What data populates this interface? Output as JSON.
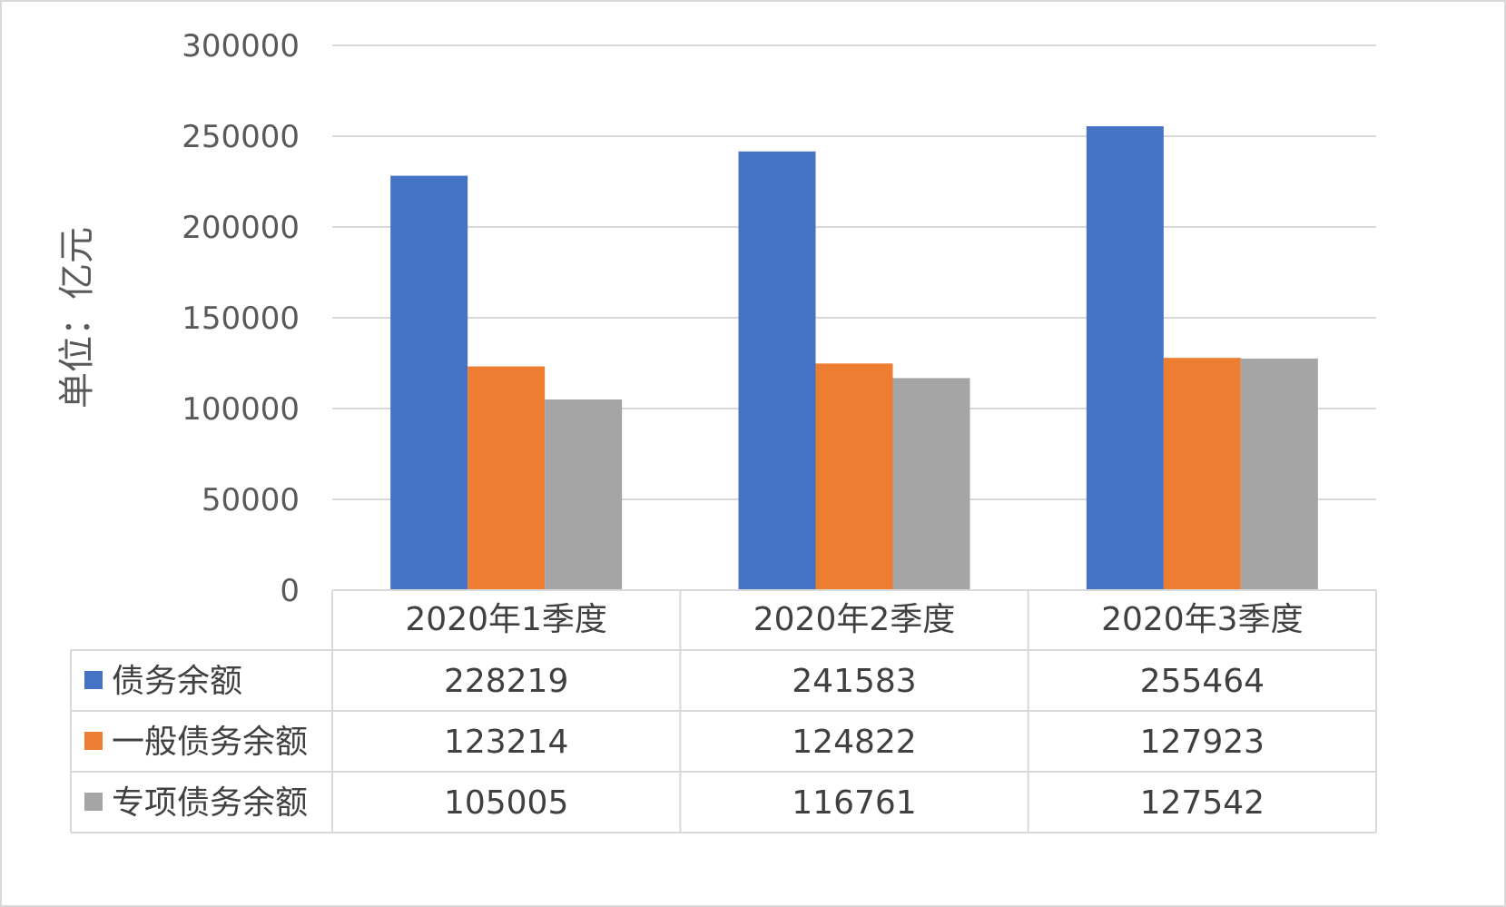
{
  "chart_data": {
    "type": "bar",
    "ylabel": "单位：亿元",
    "ylim": [
      0,
      300000
    ],
    "yticks": [
      0,
      50000,
      100000,
      150000,
      200000,
      250000,
      300000
    ],
    "ytick_labels": [
      "0",
      "50000",
      "100000",
      "150000",
      "200000",
      "250000",
      "300000"
    ],
    "categories": [
      "2020年1季度",
      "2020年2季度",
      "2020年3季度"
    ],
    "series": [
      {
        "name": "债务余额",
        "color": "#4472C4",
        "values": [
          228219,
          241583,
          255464
        ]
      },
      {
        "name": "一般债务余额",
        "color": "#ED7D31",
        "values": [
          123214,
          124822,
          127923
        ]
      },
      {
        "name": "专项债务余额",
        "color": "#A5A5A5",
        "values": [
          105005,
          116761,
          127542
        ]
      }
    ],
    "grid": true,
    "data_table": true,
    "legend": "data-table"
  }
}
